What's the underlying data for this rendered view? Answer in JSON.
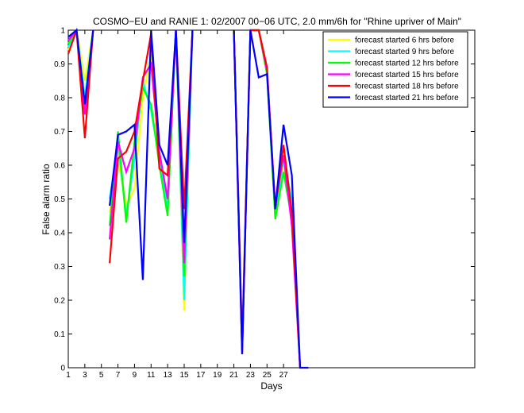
{
  "chart_data": {
    "type": "line",
    "title": "COSMO−EU and RANIE 1: 02/2007 00−06 UTC, 2.0 mm/6h for \"Rhine upriver of Main\"",
    "xlabel": "Days",
    "ylabel": "False alarm ratio",
    "xlim": [
      1,
      29
    ],
    "ylim": [
      0,
      1
    ],
    "xticks": [
      1,
      3,
      5,
      7,
      9,
      11,
      13,
      15,
      17,
      19,
      21,
      23,
      25,
      27
    ],
    "yticks": [
      0,
      0.1,
      0.2,
      0.3,
      0.4,
      0.5,
      0.6,
      0.7,
      0.8,
      0.9,
      1
    ],
    "ytick_labels": [
      "0",
      "0.1",
      "0.2",
      "0.3",
      "0.4",
      "0.5",
      "0.6",
      "0.7",
      "0.8",
      "0.9",
      "1"
    ],
    "grid": false,
    "legend_position": "top-right",
    "series": [
      {
        "name": "forecast started 6 hrs before",
        "color": "#ffff00",
        "segments": [
          [
            [
              1,
              0.94
            ],
            [
              2,
              1.0
            ],
            [
              3,
              0.85
            ],
            [
              4,
              1.0
            ]
          ],
          [
            [
              6,
              0.46
            ],
            [
              7,
              0.62
            ],
            [
              8,
              0.48
            ],
            [
              9,
              0.53
            ],
            [
              10,
              0.8
            ],
            [
              11,
              0.93
            ],
            [
              12,
              0.63
            ],
            [
              13,
              0.46
            ],
            [
              14,
              1.0
            ],
            [
              15,
              0.17
            ],
            [
              16,
              1.0
            ]
          ],
          [
            [
              21,
              1.0
            ],
            [
              22,
              0.08
            ],
            [
              23,
              1.0
            ],
            [
              24,
              1.0
            ],
            [
              25,
              0.87
            ],
            [
              26,
              0.45
            ],
            [
              27,
              0.6
            ],
            [
              28,
              0.48
            ],
            [
              29,
              0.0
            ]
          ]
        ]
      },
      {
        "name": "forecast started 9 hrs before",
        "color": "#00ffff",
        "segments": [
          [
            [
              1,
              0.95
            ],
            [
              2,
              1.0
            ],
            [
              3,
              0.8
            ],
            [
              4,
              1.0
            ]
          ],
          [
            [
              6,
              0.5
            ],
            [
              7,
              0.66
            ],
            [
              8,
              0.45
            ],
            [
              9,
              0.62
            ],
            [
              10,
              0.85
            ],
            [
              11,
              0.76
            ],
            [
              12,
              0.62
            ],
            [
              13,
              0.47
            ],
            [
              14,
              1.0
            ],
            [
              15,
              0.2
            ],
            [
              16,
              1.0
            ]
          ],
          [
            [
              21,
              1.0
            ],
            [
              22,
              0.06
            ],
            [
              23,
              1.0
            ],
            [
              24,
              1.0
            ],
            [
              25,
              0.88
            ],
            [
              26,
              0.45
            ],
            [
              27,
              0.62
            ],
            [
              28,
              0.5
            ],
            [
              29,
              0.0
            ]
          ]
        ]
      },
      {
        "name": "forecast started 12 hrs before",
        "color": "#00ff00",
        "segments": [
          [
            [
              1,
              0.96
            ],
            [
              2,
              1.0
            ],
            [
              3,
              0.78
            ],
            [
              4,
              1.0
            ]
          ],
          [
            [
              6,
              0.42
            ],
            [
              7,
              0.7
            ],
            [
              8,
              0.43
            ],
            [
              9,
              0.67
            ],
            [
              10,
              0.83
            ],
            [
              11,
              0.78
            ],
            [
              12,
              0.6
            ],
            [
              13,
              0.45
            ],
            [
              14,
              1.0
            ],
            [
              15,
              0.27
            ],
            [
              16,
              1.0
            ]
          ],
          [
            [
              21,
              1.0
            ],
            [
              22,
              0.05
            ],
            [
              23,
              1.0
            ],
            [
              24,
              1.0
            ],
            [
              25,
              0.87
            ],
            [
              26,
              0.44
            ],
            [
              27,
              0.58
            ],
            [
              28,
              0.44
            ],
            [
              29,
              0.0
            ]
          ]
        ]
      },
      {
        "name": "forecast started 15 hrs before",
        "color": "#ff00ff",
        "segments": [
          [
            [
              1,
              0.97
            ],
            [
              2,
              1.0
            ],
            [
              3,
              0.75
            ],
            [
              4,
              1.0
            ]
          ],
          [
            [
              6,
              0.38
            ],
            [
              7,
              0.67
            ],
            [
              8,
              0.58
            ],
            [
              9,
              0.65
            ],
            [
              10,
              0.86
            ],
            [
              11,
              0.9
            ],
            [
              12,
              0.64
            ],
            [
              13,
              0.5
            ],
            [
              14,
              1.0
            ],
            [
              15,
              0.31
            ],
            [
              16,
              1.0
            ]
          ],
          [
            [
              21,
              1.0
            ],
            [
              22,
              0.04
            ],
            [
              23,
              1.0
            ],
            [
              24,
              1.0
            ],
            [
              25,
              0.88
            ],
            [
              26,
              0.48
            ],
            [
              27,
              0.63
            ],
            [
              28,
              0.42
            ],
            [
              29,
              0.0
            ]
          ]
        ]
      },
      {
        "name": "forecast started 18 hrs before",
        "color": "#ff0000",
        "segments": [
          [
            [
              1,
              0.93
            ],
            [
              2,
              1.0
            ],
            [
              3,
              0.68
            ],
            [
              4,
              1.0
            ]
          ],
          [
            [
              6,
              0.31
            ],
            [
              7,
              0.62
            ],
            [
              8,
              0.64
            ],
            [
              9,
              0.7
            ],
            [
              10,
              0.85
            ],
            [
              11,
              0.99
            ],
            [
              12,
              0.59
            ],
            [
              13,
              0.57
            ],
            [
              14,
              1.0
            ],
            [
              15,
              0.47
            ],
            [
              16,
              1.0
            ]
          ],
          [
            [
              21,
              1.0
            ],
            [
              22,
              0.07
            ],
            [
              23,
              1.0
            ],
            [
              24,
              1.0
            ],
            [
              25,
              0.89
            ],
            [
              26,
              0.47
            ],
            [
              27,
              0.66
            ],
            [
              28,
              0.46
            ],
            [
              29,
              0.0
            ]
          ]
        ]
      },
      {
        "name": "forecast started 21 hrs before",
        "color": "#0000ff",
        "segments": [
          [
            [
              1,
              0.98
            ],
            [
              2,
              1.0
            ],
            [
              3,
              0.78
            ],
            [
              4,
              1.0
            ]
          ],
          [
            [
              6,
              0.48
            ],
            [
              7,
              0.69
            ],
            [
              8,
              0.7
            ],
            [
              9,
              0.72
            ],
            [
              10,
              0.26
            ],
            [
              11,
              1.0
            ],
            [
              12,
              0.66
            ],
            [
              13,
              0.6
            ],
            [
              14,
              1.0
            ],
            [
              15,
              0.37
            ],
            [
              16,
              1.0
            ]
          ],
          [
            [
              21,
              1.0
            ],
            [
              22,
              0.04
            ],
            [
              23,
              1.0
            ],
            [
              24,
              0.86
            ],
            [
              25,
              0.87
            ],
            [
              26,
              0.47
            ],
            [
              27,
              0.72
            ],
            [
              28,
              0.57
            ],
            [
              29,
              0.0
            ],
            [
              30,
              0.0
            ]
          ]
        ]
      }
    ]
  }
}
